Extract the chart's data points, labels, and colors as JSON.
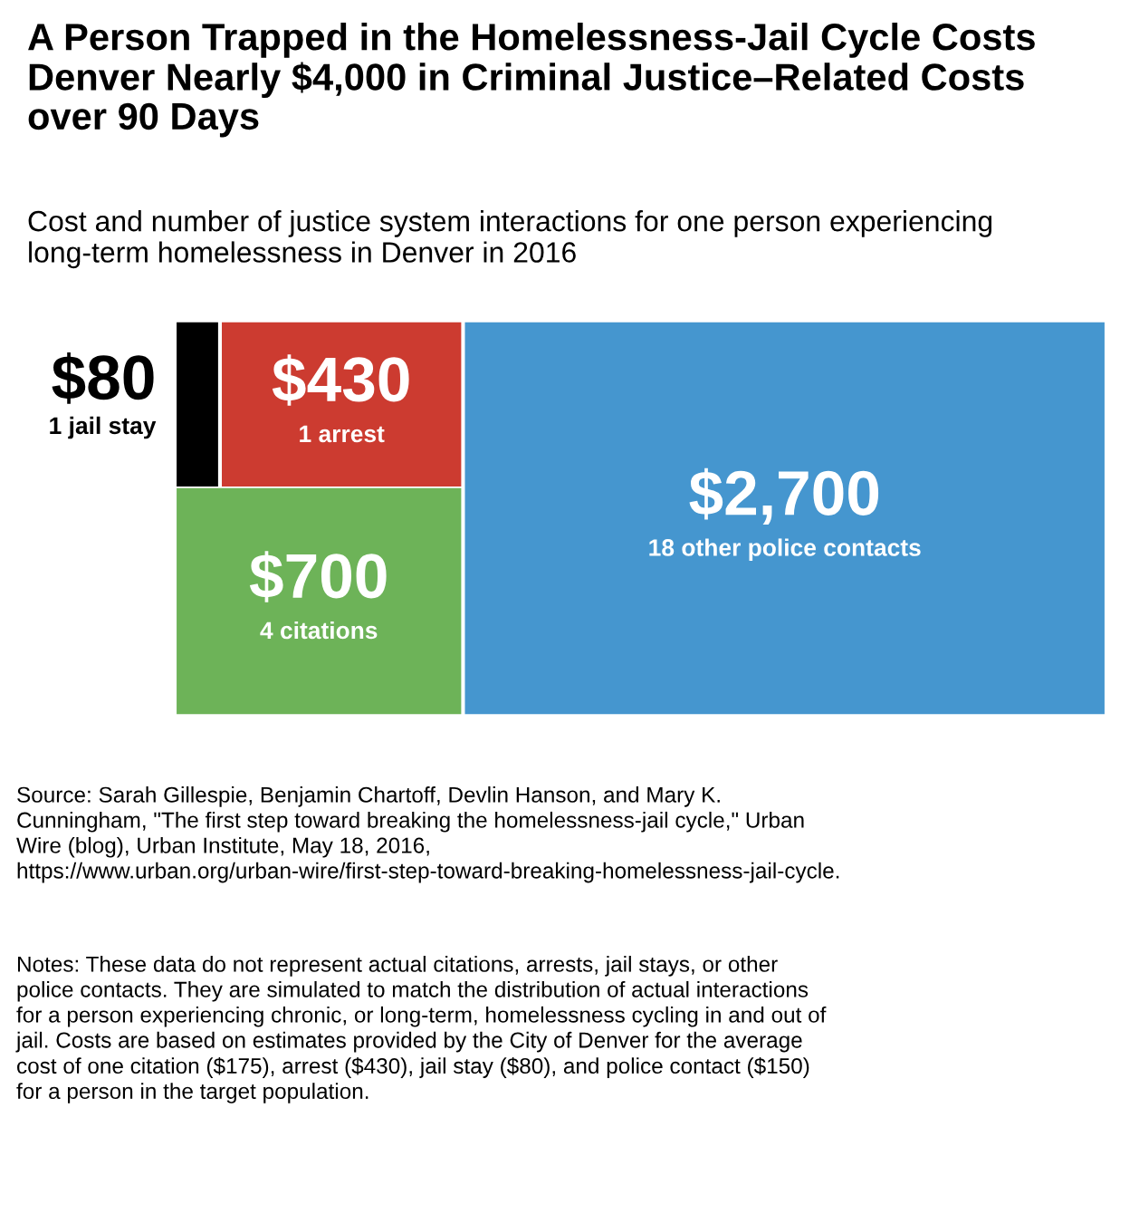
{
  "chart_data": {
    "type": "other",
    "title": "A Person Trapped in the Homelessness-Jail Cycle Costs Denver Nearly $4,000 in Criminal Justice–Related Costs over 90 Days",
    "subtitle": "Cost and number of justice system interactions for one person experiencing long-term homelessness in Denver in 2016",
    "categories": [
      "1 jail stay",
      "1 arrest",
      "4 citations",
      "18 other police contacts"
    ],
    "values": [
      80,
      430,
      700,
      2700
    ],
    "value_labels": [
      "$80",
      "$430",
      "$700",
      "$2,700"
    ],
    "colors": [
      "#000000",
      "#cc3b30",
      "#6db358",
      "#4596cf"
    ],
    "annotations": [
      "Source: Sarah Gillespie, Benjamin Chartoff, Devlin Hanson, and Mary K. Cunningham, \"The first step toward breaking the homelessness-jail cycle,\" Urban Wire (blog), Urban Institute, May 18, 2016, https://www.urban.org/urban-wire/first-step-toward-breaking-homelessness-jail-cycle.",
      "Notes: These data do not represent actual citations, arrests, jail stays, or other police contacts. They are simulated to match the distribution of actual interactions for a person experiencing chronic, or long-term, homelessness cycling in and out of jail. Costs are based on estimates provided by the City of Denver for the average cost of one citation ($175), arrest ($430), jail stay ($80), and police contact ($150) for a person in the target population."
    ]
  }
}
